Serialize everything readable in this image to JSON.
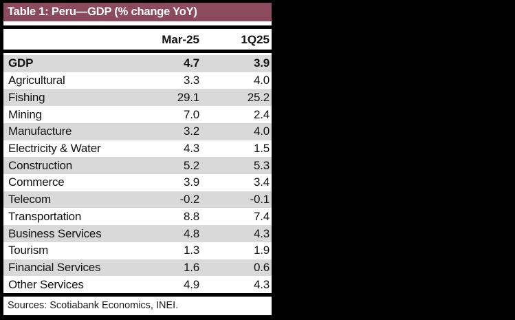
{
  "title": "Table 1: Peru—GDP (% change YoY)",
  "columns": [
    "Mar-25",
    "1Q25"
  ],
  "rows": [
    {
      "label": "GDP",
      "values": [
        "4.7",
        "3.9"
      ]
    },
    {
      "label": "Agricultural",
      "values": [
        "3.3",
        "4.0"
      ]
    },
    {
      "label": "Fishing",
      "values": [
        "29.1",
        "25.2"
      ]
    },
    {
      "label": "Mining",
      "values": [
        "7.0",
        "2.4"
      ]
    },
    {
      "label": "Manufacture",
      "values": [
        "3.2",
        "4.0"
      ]
    },
    {
      "label": "Electricity & Water",
      "values": [
        "4.3",
        "1.5"
      ]
    },
    {
      "label": "Construction",
      "values": [
        "5.2",
        "5.3"
      ]
    },
    {
      "label": "Commerce",
      "values": [
        "3.9",
        "3.4"
      ]
    },
    {
      "label": "Telecom",
      "values": [
        "-0.2",
        "-0.1"
      ]
    },
    {
      "label": "Transportation",
      "values": [
        "8.8",
        "7.4"
      ]
    },
    {
      "label": "Business Services",
      "values": [
        "4.8",
        "4.3"
      ]
    },
    {
      "label": "Tourism",
      "values": [
        "1.3",
        "1.9"
      ]
    },
    {
      "label": "Financial Services",
      "values": [
        "1.6",
        "0.6"
      ]
    },
    {
      "label": "Other Services",
      "values": [
        "4.9",
        "4.3"
      ]
    }
  ],
  "footer": "Sources: Scotiabank Economics, INEI.",
  "colors": {
    "title_bg": "#8B4A5E",
    "title_text": "#FFFFFF",
    "alt_row_bg": "#D9D9D9",
    "body_text": "#111111",
    "border": "#000000",
    "surround": "#000000"
  },
  "chart_data": {
    "type": "table",
    "title": "Table 1: Peru—GDP (% change YoY)",
    "categories": [
      "GDP",
      "Agricultural",
      "Fishing",
      "Mining",
      "Manufacture",
      "Electricity & Water",
      "Construction",
      "Commerce",
      "Telecom",
      "Transportation",
      "Business Services",
      "Tourism",
      "Financial Services",
      "Other Services"
    ],
    "series": [
      {
        "name": "Mar-25",
        "values": [
          4.7,
          3.3,
          29.1,
          7.0,
          3.2,
          4.3,
          5.2,
          3.9,
          -0.2,
          8.8,
          4.8,
          1.3,
          1.6,
          4.9
        ]
      },
      {
        "name": "1Q25",
        "values": [
          3.9,
          4.0,
          25.2,
          2.4,
          4.0,
          1.5,
          5.3,
          3.4,
          -0.1,
          7.4,
          4.3,
          1.9,
          0.6,
          4.3
        ]
      }
    ],
    "source": "Sources: Scotiabank Economics, INEI."
  }
}
